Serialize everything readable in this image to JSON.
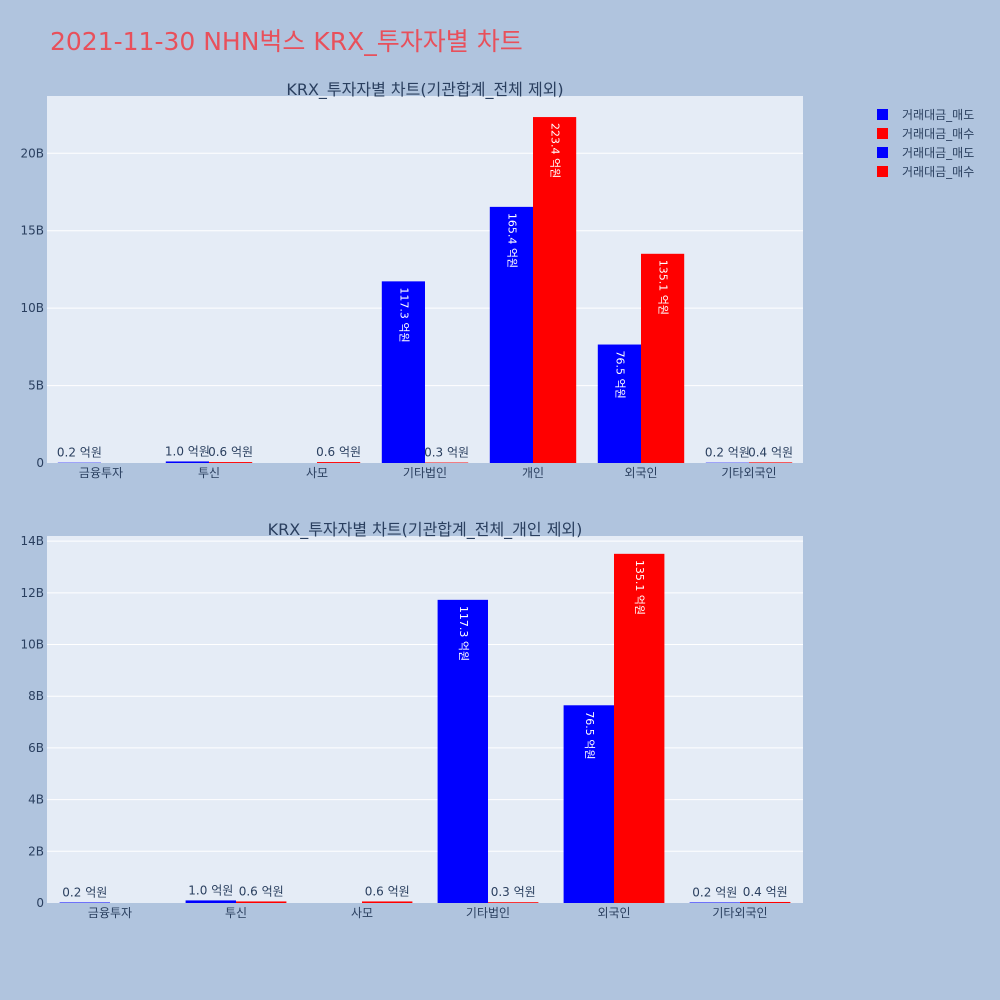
{
  "page_title": "2021-11-30 NHN벅스 KRX_투자자별 차트",
  "colors": {
    "sell": "#0000ff",
    "buy": "#ff0000",
    "plot_bg": "#e5ecf6",
    "page_bg": "#b0c4de",
    "title": "#e8505b"
  },
  "legend": [
    {
      "label": "거래대금_매도",
      "color": "#0000ff"
    },
    {
      "label": "거래대금_매수",
      "color": "#ff0000"
    },
    {
      "label": "거래대금_매도",
      "color": "#0000ff"
    },
    {
      "label": "거래대금_매수",
      "color": "#ff0000"
    }
  ],
  "chart_data": [
    {
      "type": "bar",
      "title": "KRX_투자자별 차트(기관합계_전체 제외)",
      "categories": [
        "금융투자",
        "투신",
        "사모",
        "기타법인",
        "개인",
        "외국인",
        "기타외국인"
      ],
      "yticks": [
        "0",
        "5B",
        "10B",
        "15B",
        "20B"
      ],
      "ylim": [
        0,
        23.7
      ],
      "series": [
        {
          "name": "거래대금_매도",
          "values": [
            0.02,
            0.1,
            0.0,
            11.73,
            16.54,
            7.65,
            0.02
          ],
          "labels": [
            "0.2 억원",
            "1.0 억원",
            "",
            "117.3 억원",
            "165.4 억원",
            "76.5 억원",
            "0.2 억원"
          ]
        },
        {
          "name": "거래대금_매수",
          "values": [
            0.0,
            0.06,
            0.06,
            0.03,
            22.34,
            13.51,
            0.04
          ],
          "labels": [
            "",
            "0.6 억원",
            "0.6 억원",
            "0.3 억원",
            "223.4 억원",
            "135.1 억원",
            "0.4 억원"
          ]
        }
      ]
    },
    {
      "type": "bar",
      "title": "KRX_투자자별 차트(기관합계_전체_개인 제외)",
      "categories": [
        "금융투자",
        "투신",
        "사모",
        "기타법인",
        "외국인",
        "기타외국인"
      ],
      "yticks": [
        "0",
        "2B",
        "4B",
        "6B",
        "8B",
        "10B",
        "12B",
        "14B"
      ],
      "ylim": [
        0,
        14.2
      ],
      "series": [
        {
          "name": "거래대금_매도",
          "values": [
            0.02,
            0.1,
            0.0,
            11.73,
            7.65,
            0.02
          ],
          "labels": [
            "0.2 억원",
            "1.0 억원",
            "",
            "117.3 억원",
            "76.5 억원",
            "0.2 억원"
          ]
        },
        {
          "name": "거래대금_매수",
          "values": [
            0.0,
            0.06,
            0.06,
            0.03,
            13.51,
            0.04
          ],
          "labels": [
            "",
            "0.6 억원",
            "0.6 억원",
            "0.3 억원",
            "135.1 억원",
            "0.4 억원"
          ]
        }
      ]
    }
  ]
}
